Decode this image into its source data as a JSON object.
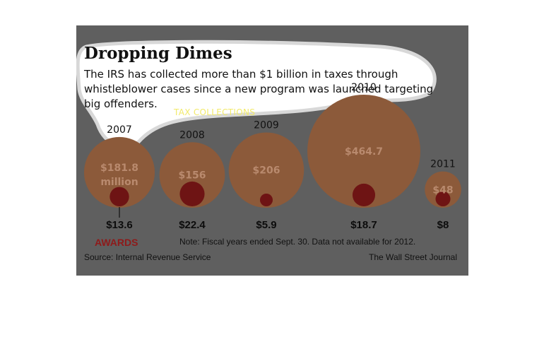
{
  "colors": {
    "panel": "#5f5f5f",
    "tax_bubble": "#8c5a3a",
    "award_bubble": "#6e1414",
    "highlight": "#ffffff",
    "awards_label": "#8e1a1a",
    "tax_label": "#f2ea6a"
  },
  "chart_data": {
    "type": "bubble",
    "title": "Dropping Dimes",
    "subtitle_lines": [
      "The IRS has collected more than $1 billion in taxes through",
      "whistleblower cases since a new program was launched targeting",
      "big offenders."
    ],
    "series": [
      {
        "name": "TAX COLLECTIONS",
        "values": [
          181.8,
          156,
          206,
          464.7,
          48
        ]
      },
      {
        "name": "AWARDS",
        "values": [
          13.6,
          22.4,
          5.9,
          18.7,
          8
        ]
      }
    ],
    "categories": [
      "2007",
      "2008",
      "2009",
      "2010",
      "2011"
    ],
    "tax_labels": [
      "$181.8",
      "$156",
      "$206",
      "$464.7",
      "$48"
    ],
    "tax_label_first_unit": "million",
    "award_labels": [
      "$13.6",
      "$22.4",
      "$5.9",
      "$18.7",
      "$8"
    ],
    "note": "Note: Fiscal years ended Sept. 30. Data not available for 2012.",
    "source": "Source: Internal Revenue Service",
    "credit": "The Wall Street Journal"
  }
}
